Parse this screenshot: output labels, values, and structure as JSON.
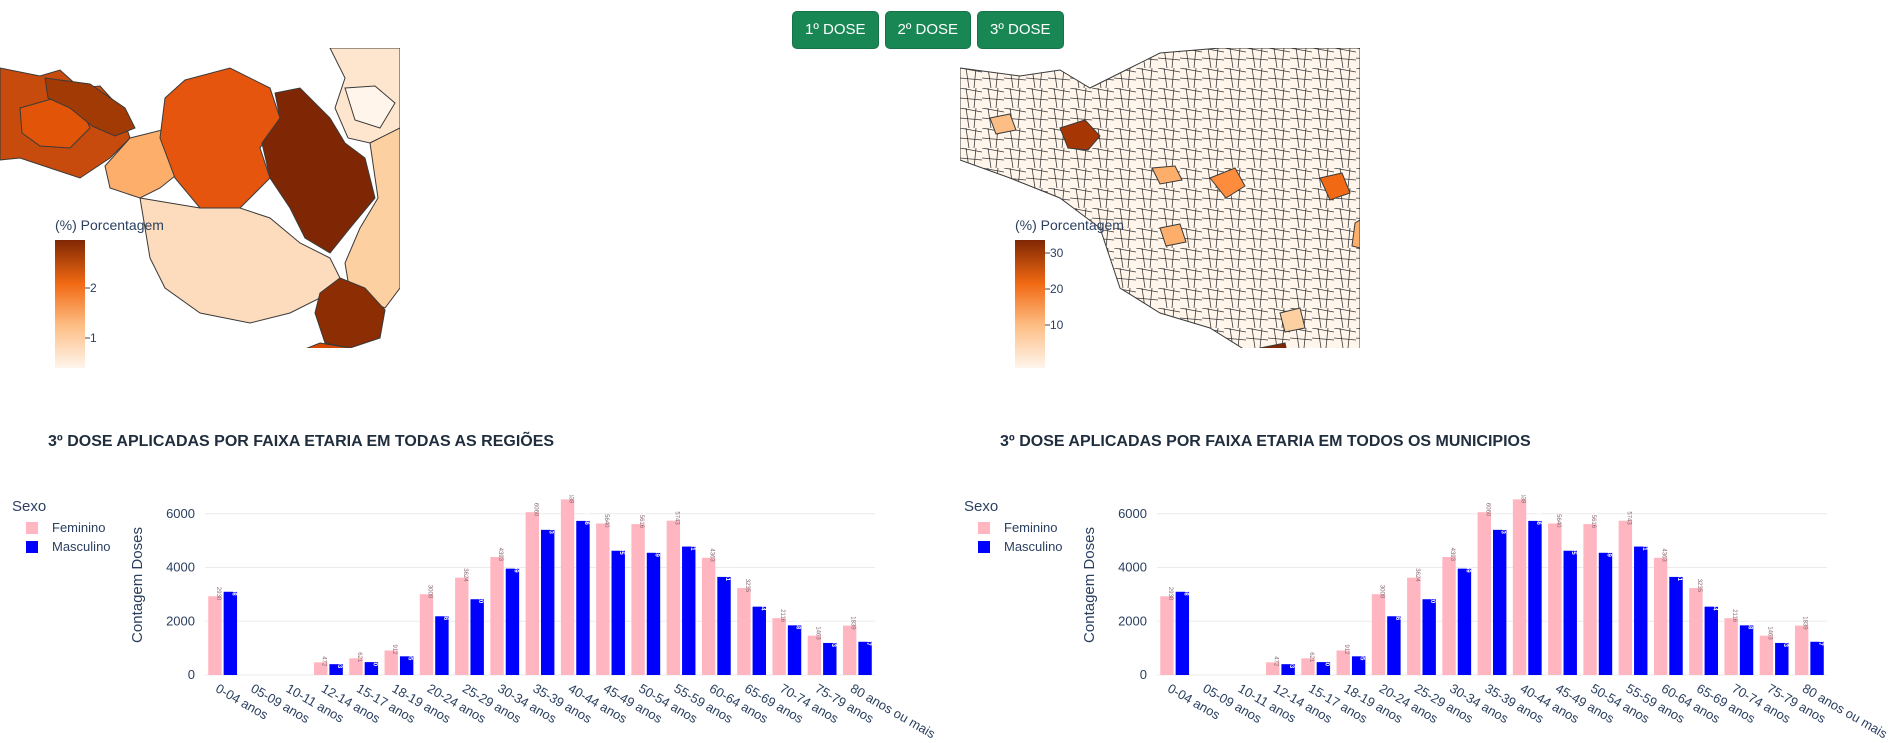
{
  "buttons": {
    "dose1": "1º DOSE",
    "dose2": "2º DOSE",
    "dose3": "3º DOSE",
    "color": "#198754"
  },
  "maps": {
    "left": {
      "colorbar_title": "(%) Porcentagem",
      "ticks": [
        "2",
        "1"
      ],
      "colorscale": [
        "#fff5eb",
        "#fdbe85",
        "#f16913",
        "#7f2704"
      ]
    },
    "right": {
      "colorbar_title": "(%) Porcentagem",
      "ticks": [
        "30",
        "20",
        "10"
      ],
      "colorscale": [
        "#fff5eb",
        "#fdbe85",
        "#f16913",
        "#7f2704"
      ]
    }
  },
  "chart_titles": {
    "left": "3º DOSE APLICADAS POR FAIXA ETARIA EM TODAS AS REGIÕES",
    "right": "3º DOSE APLICADAS POR FAIXA ETARIA EM TODOS OS MUNICIPIOS"
  },
  "chart_data": [
    {
      "type": "bar",
      "legend_title": "Sexo",
      "ylabel": "Contagem Doses",
      "xlabel": "",
      "yticks": [
        0,
        2000,
        4000,
        6000
      ],
      "ylim": [
        0,
        6700
      ],
      "legend_position": "left",
      "categories": [
        "0-04 anos",
        "05-09 anos",
        "10-11 anos",
        "12-14 anos",
        "15-17 anos",
        "18-19 anos",
        "20-24 anos",
        "25-29 anos",
        "30-34 anos",
        "35-39 anos",
        "40-44 anos",
        "45-49 anos",
        "50-54 anos",
        "55-59 anos",
        "60-64 anos",
        "65-69 anos",
        "70-74 anos",
        "75-79 anos",
        "80 anos ou mais"
      ],
      "series": [
        {
          "name": "Feminino",
          "color": "#ffb6c1",
          "values": [
            2930,
            0,
            0,
            472,
            621,
            912,
            3008,
            3624,
            4393,
            6060,
            6538,
            5640,
            5616,
            5743,
            4363,
            3235,
            2116,
            1463,
            1839
          ]
        },
        {
          "name": "Masculino",
          "color": "#0000ff",
          "values": [
            3098,
            0,
            0,
            403,
            480,
            695,
            2186,
            2820,
            3959,
            5403,
            5736,
            4625,
            4549,
            4781,
            3651,
            2544,
            1848,
            1193,
            1237
          ]
        }
      ]
    },
    {
      "type": "bar",
      "legend_title": "Sexo",
      "ylabel": "Contagem Doses",
      "xlabel": "",
      "yticks": [
        0,
        2000,
        4000,
        6000
      ],
      "ylim": [
        0,
        6700
      ],
      "legend_position": "left",
      "categories": [
        "0-04 anos",
        "05-09 anos",
        "10-11 anos",
        "12-14 anos",
        "15-17 anos",
        "18-19 anos",
        "20-24 anos",
        "25-29 anos",
        "30-34 anos",
        "35-39 anos",
        "40-44 anos",
        "45-49 anos",
        "50-54 anos",
        "55-59 anos",
        "60-64 anos",
        "65-69 anos",
        "70-74 anos",
        "75-79 anos",
        "80 anos ou mais"
      ],
      "series": [
        {
          "name": "Feminino",
          "color": "#ffb6c1",
          "values": [
            2930,
            0,
            0,
            472,
            621,
            912,
            3008,
            3624,
            4393,
            6060,
            6538,
            5640,
            5616,
            5743,
            4363,
            3235,
            2116,
            1463,
            1839
          ]
        },
        {
          "name": "Masculino",
          "color": "#0000ff",
          "values": [
            3098,
            0,
            0,
            403,
            480,
            695,
            2186,
            2820,
            3959,
            5403,
            5736,
            4625,
            4549,
            4781,
            3651,
            2544,
            1848,
            1193,
            1237
          ]
        }
      ]
    }
  ]
}
